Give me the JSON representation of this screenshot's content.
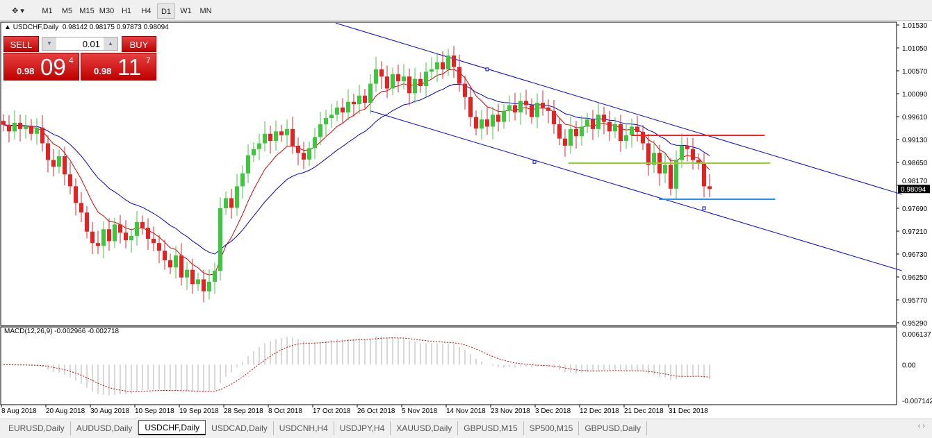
{
  "toolbar": {
    "timeframes": [
      "M1",
      "M5",
      "M15",
      "M30",
      "H1",
      "H4",
      "D1",
      "W1",
      "MN"
    ],
    "active": "D1",
    "tool_icon": "line-tools-icon"
  },
  "header": {
    "symbol": "USDCHF,Daily",
    "ohlc": "0.98142 0.98175 0.97873 0.98094"
  },
  "trade_panel": {
    "sell_label": "SELL",
    "buy_label": "BUY",
    "lot": "0.01",
    "sell_prefix": "0.98",
    "sell_big": "09",
    "sell_sup": "4",
    "buy_prefix": "0.98",
    "buy_big": "11",
    "buy_sup": "7"
  },
  "macd": {
    "label": "MACD(12,26,9) -0.002966 -0.002718",
    "axis": [
      "0.006137",
      "0.00",
      "-0.007142"
    ],
    "ylim": [
      -0.007142,
      0.006137
    ]
  },
  "tabs": [
    "EURUSD,Daily",
    "AUDUSD,Daily",
    "USDCHF,Daily",
    "USDCAD,Daily",
    "USDCNH,H4",
    "USDJPY,H4",
    "XAUUSD,Daily",
    "GBPUSD,M15",
    "SP500,M15",
    "GBPUSD,Daily"
  ],
  "active_tab": "USDCHF,Daily",
  "colors": {
    "bull": "#3cc83c",
    "bear": "#e82020",
    "ma_fast": "#e00000",
    "ma_slow": "#0000e0",
    "channel": "#0000ff",
    "level_red": "#ff2020",
    "level_green": "#9acd32",
    "level_blue": "#1e90ff"
  },
  "chart_data": {
    "type": "candlestick",
    "symbol": "USDCHF",
    "timeframe": "Daily",
    "ylim": [
      0.9529,
      1.0153
    ],
    "y_ticks": [
      "1.01530",
      "1.01050",
      "1.00570",
      "1.00090",
      "0.99610",
      "0.99130",
      "0.98650",
      "0.98170",
      "0.97690",
      "0.97210",
      "0.96730",
      "0.96250",
      "0.95770",
      "0.95290"
    ],
    "current_price": "0.98094",
    "x_labels": [
      {
        "i": 0,
        "t": "8 Aug 2018"
      },
      {
        "i": 8,
        "t": "20 Aug 2018"
      },
      {
        "i": 16,
        "t": "30 Aug 2018"
      },
      {
        "i": 24,
        "t": "10 Sep 2018"
      },
      {
        "i": 32,
        "t": "19 Sep 2018"
      },
      {
        "i": 40,
        "t": "28 Sep 2018"
      },
      {
        "i": 48,
        "t": "8 Oct 2018"
      },
      {
        "i": 56,
        "t": "17 Oct 2018"
      },
      {
        "i": 64,
        "t": "26 Oct 2018"
      },
      {
        "i": 72,
        "t": "5 Nov 2018"
      },
      {
        "i": 80,
        "t": "14 Nov 2018"
      },
      {
        "i": 88,
        "t": "23 Nov 2018"
      },
      {
        "i": 96,
        "t": "3 Dec 2018"
      },
      {
        "i": 104,
        "t": "12 Dec 2018"
      },
      {
        "i": 112,
        "t": "21 Dec 2018"
      },
      {
        "i": 120,
        "t": "31 Dec 2018"
      }
    ],
    "close": [
      0.9944,
      0.993,
      0.9948,
      0.9935,
      0.9942,
      0.9925,
      0.9938,
      0.9905,
      0.987,
      0.9856,
      0.9878,
      0.984,
      0.9815,
      0.978,
      0.976,
      0.972,
      0.9696,
      0.969,
      0.9725,
      0.97,
      0.9735,
      0.9718,
      0.9702,
      0.9711,
      0.974,
      0.9728,
      0.9705,
      0.9696,
      0.968,
      0.966,
      0.9645,
      0.967,
      0.9624,
      0.964,
      0.961,
      0.962,
      0.9595,
      0.9615,
      0.9638,
      0.9769,
      0.979,
      0.977,
      0.9815,
      0.9842,
      0.988,
      0.9893,
      0.9905,
      0.9925,
      0.991,
      0.993,
      0.9922,
      0.9935,
      0.99,
      0.9885,
      0.9871,
      0.9895,
      0.9918,
      0.9945,
      0.9958,
      0.9965,
      0.998,
      0.997,
      0.9992,
      0.9987,
      1.0005,
      0.999,
      1.003,
      1.006,
      1.0045,
      1.002,
      1.005,
      1.0035,
      1.0045,
      1.001,
      1.004,
      1.0025,
      1.0055,
      1.006,
      1.0075,
      1.006,
      1.0089,
      1.0065,
      1.003,
      1.0002,
      0.996,
      0.9936,
      0.9955,
      0.994,
      0.9965,
      0.995,
      0.9973,
      0.9985,
      0.997,
      0.9994,
      0.9985,
      0.996,
      0.999,
      0.998,
      0.9973,
      0.9945,
      0.9915,
      0.99,
      0.9935,
      0.992,
      0.994,
      0.9955,
      0.9935,
      0.9965,
      0.995,
      0.993,
      0.9945,
      0.991,
      0.9922,
      0.994,
      0.9929,
      0.9905,
      0.986,
      0.9885,
      0.9842,
      0.986,
      0.981,
      0.987,
      0.99,
      0.9893,
      0.987,
      0.9864,
      0.9815,
      0.98094
    ],
    "moving_averages": [
      {
        "type": "EMA",
        "period": 8,
        "color": "ma_fast"
      },
      {
        "type": "EMA",
        "period": 20,
        "color": "ma_slow"
      }
    ],
    "channel_lines": [
      {
        "from": [
          59.75,
          1.0157
        ],
        "to": [
          161.6,
          0.9798
        ]
      },
      {
        "from": [
          66,
          0.9973
        ],
        "to": [
          161.6,
          0.9638
        ]
      }
    ],
    "channel_anchors": [
      {
        "i": 87,
        "p": 1.006
      },
      {
        "i": 95.5,
        "p": 0.9866
      },
      {
        "i": 126,
        "p": 0.9769
      }
    ],
    "horizontal_levels": [
      {
        "price": 0.99217,
        "from": 112.9,
        "to": 136.9,
        "color": "level_red"
      },
      {
        "price": 0.98636,
        "from": 101.6,
        "to": 137.9,
        "color": "level_green"
      },
      {
        "price": 0.97879,
        "from": 117.9,
        "to": 138.8,
        "color": "level_blue"
      }
    ]
  }
}
